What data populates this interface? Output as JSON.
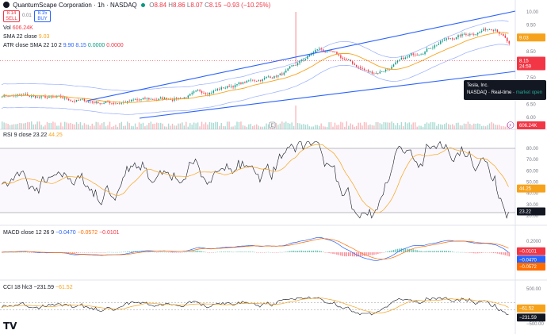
{
  "header": {
    "title": "QuantumScape Corporation · 1h · NASDAQ",
    "ohlc": {
      "o_label": "O",
      "o": "8.84",
      "h_label": "H",
      "h": "8.86",
      "l_label": "L",
      "l": "8.07",
      "c_label": "C",
      "c": "8.15",
      "chg": "−0.93 (−10.25%)"
    },
    "sell": {
      "price": "8.14",
      "label": "SELL"
    },
    "spread": "0.01",
    "buy": {
      "price": "8.15",
      "label": "BUY"
    }
  },
  "indicators": {
    "vol": {
      "name": "Vol",
      "value": "606.24K"
    },
    "sma": {
      "name": "SMA 22 close",
      "value": "9.03"
    },
    "atr": {
      "name": "ATR close SMA 22 10 2",
      "v1": "9.90",
      "v2": "8.15",
      "v3": "0.0000",
      "v4": "0.0000"
    },
    "rsi": {
      "name": "RSI 9 close",
      "v1": "23.22",
      "v2": "44.25"
    },
    "macd": {
      "name": "MACD close 12 26 9",
      "v1": "−0.0470",
      "v2": "−0.0572",
      "v3": "−0.0101"
    },
    "cci": {
      "name": "CCI 18 hlc3",
      "v1": "−231.59",
      "v2": "−61.52"
    }
  },
  "price_axis": {
    "ticks": [
      "10.00",
      "9.50",
      "9.00",
      "8.50",
      "8.00",
      "7.50",
      "7.00",
      "6.50",
      "6.00"
    ],
    "sma_tag": "9.03",
    "last_price": "8.15",
    "countdown": "24:59",
    "vol_tag": "606.24K"
  },
  "rsi_axis": {
    "ticks": [
      "80.00",
      "70.00",
      "60.00",
      "50.00",
      "40.00",
      "30.00",
      "20.00"
    ],
    "tag_ma": "44.25",
    "tag_rsi": "23.22"
  },
  "macd_axis": {
    "ticks": [
      "0.2000",
      "−0.2000"
    ],
    "tag1": "−0.0101",
    "tag2": "−0.0470",
    "tag3": "−0.0572"
  },
  "cci_axis": {
    "ticks": [
      "500.00",
      "−500.00"
    ],
    "tag1": "−61.52",
    "tag2": "−231.59"
  },
  "tooltip": {
    "symbol": "Tesla, Inc.",
    "line": "NASDAQ · Real-time ·",
    "status": "market open"
  },
  "markers": {
    "earnings": "E",
    "flash": "⚡"
  },
  "colors": {
    "up": "#089981",
    "down": "#f23645",
    "sma": "#f7a21b",
    "channel": "#2962ff",
    "atr": "#6c8cff",
    "rsi": "#131722",
    "macd": "#2962ff",
    "signal": "#ff6d00",
    "text": "#131722",
    "muted": "#787b86"
  }
}
